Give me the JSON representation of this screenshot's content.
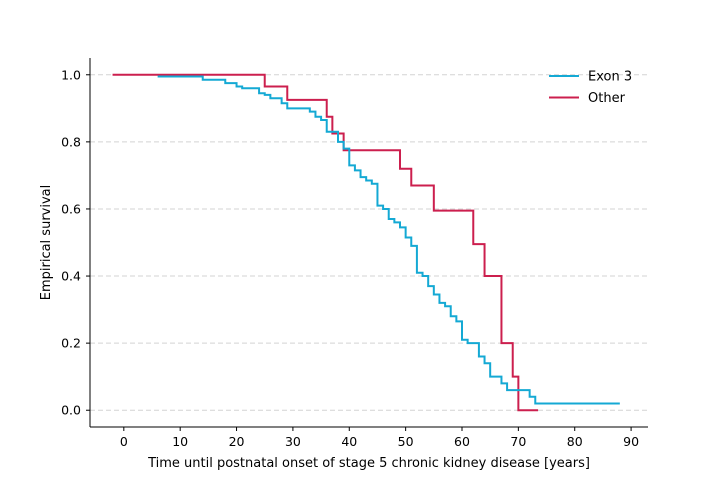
{
  "chart_data": {
    "type": "line",
    "step": true,
    "title": "",
    "xlabel": "Time until postnatal onset of stage 5 chronic kidney disease [years]",
    "ylabel": "Empirical survival",
    "xlim": [
      -6,
      93
    ],
    "ylim": [
      -0.05,
      1.05
    ],
    "xticks": [
      0,
      10,
      20,
      30,
      40,
      50,
      60,
      70,
      80,
      90
    ],
    "yticks": [
      0.0,
      0.2,
      0.4,
      0.6,
      0.8,
      1.0
    ],
    "xtick_labels": [
      "0",
      "10",
      "20",
      "30",
      "40",
      "50",
      "60",
      "70",
      "80",
      "90"
    ],
    "ytick_labels": [
      "0.0",
      "0.2",
      "0.4",
      "0.6",
      "0.8",
      "1.0"
    ],
    "grid": "y-dashed",
    "legend_position": "top-right",
    "series": [
      {
        "name": "Other",
        "color": "#cc1f4e",
        "points": [
          [
            -2,
            1.0
          ],
          [
            25,
            0.965
          ],
          [
            29,
            0.925
          ],
          [
            36,
            0.875
          ],
          [
            37,
            0.825
          ],
          [
            39,
            0.775
          ],
          [
            49,
            0.72
          ],
          [
            51,
            0.67
          ],
          [
            55,
            0.595
          ],
          [
            62,
            0.495
          ],
          [
            64,
            0.4
          ],
          [
            67,
            0.2
          ],
          [
            69,
            0.1
          ],
          [
            70,
            0.0
          ],
          [
            73.5,
            0.0
          ]
        ]
      },
      {
        "name": "Exon 3",
        "color": "#14a9d4",
        "points": [
          [
            6,
            0.995
          ],
          [
            14,
            0.985
          ],
          [
            18,
            0.975
          ],
          [
            20,
            0.965
          ],
          [
            21,
            0.96
          ],
          [
            24,
            0.945
          ],
          [
            25,
            0.94
          ],
          [
            26,
            0.93
          ],
          [
            28,
            0.915
          ],
          [
            29,
            0.9
          ],
          [
            33,
            0.89
          ],
          [
            34,
            0.875
          ],
          [
            35,
            0.865
          ],
          [
            36,
            0.83
          ],
          [
            38,
            0.8
          ],
          [
            39,
            0.78
          ],
          [
            40,
            0.73
          ],
          [
            41,
            0.715
          ],
          [
            42,
            0.695
          ],
          [
            43,
            0.685
          ],
          [
            44,
            0.675
          ],
          [
            45,
            0.61
          ],
          [
            46,
            0.6
          ],
          [
            47,
            0.57
          ],
          [
            48,
            0.56
          ],
          [
            49,
            0.545
          ],
          [
            50,
            0.515
          ],
          [
            51,
            0.49
          ],
          [
            52,
            0.41
          ],
          [
            53,
            0.4
          ],
          [
            54,
            0.37
          ],
          [
            55,
            0.345
          ],
          [
            56,
            0.32
          ],
          [
            57,
            0.31
          ],
          [
            58,
            0.28
          ],
          [
            59,
            0.265
          ],
          [
            60,
            0.21
          ],
          [
            61,
            0.2
          ],
          [
            63,
            0.16
          ],
          [
            64,
            0.14
          ],
          [
            65,
            0.1
          ],
          [
            67,
            0.08
          ],
          [
            68,
            0.06
          ],
          [
            72,
            0.04
          ],
          [
            73,
            0.02
          ],
          [
            88,
            0.02
          ]
        ]
      }
    ]
  }
}
